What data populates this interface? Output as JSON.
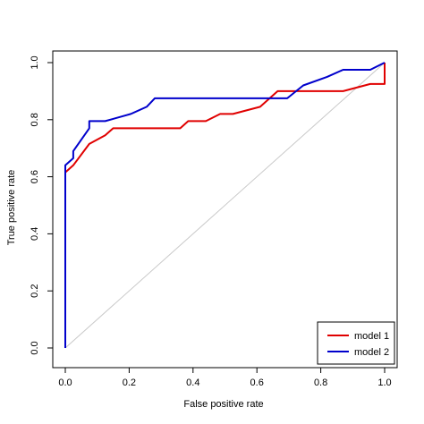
{
  "chart_data": {
    "type": "line",
    "title": "",
    "xlabel": "False positive rate",
    "ylabel": "True positive rate",
    "xlim": [
      0,
      1
    ],
    "ylim": [
      0,
      1
    ],
    "xticks": [
      "0.0",
      "0.2",
      "0.4",
      "0.6",
      "0.8",
      "1.0"
    ],
    "yticks": [
      "0.0",
      "0.2",
      "0.4",
      "0.6",
      "0.8",
      "1.0"
    ],
    "grid": false,
    "legend_position": "bottom-right",
    "reference_line": {
      "from": [
        0,
        0
      ],
      "to": [
        1,
        1
      ],
      "color": "#c8c8c8"
    },
    "series": [
      {
        "name": "model 1",
        "color": "#e00000",
        "points": [
          [
            0.0,
            0.0
          ],
          [
            0.0,
            0.615
          ],
          [
            0.025,
            0.64
          ],
          [
            0.075,
            0.715
          ],
          [
            0.125,
            0.745
          ],
          [
            0.15,
            0.77
          ],
          [
            0.36,
            0.77
          ],
          [
            0.385,
            0.795
          ],
          [
            0.44,
            0.795
          ],
          [
            0.485,
            0.82
          ],
          [
            0.525,
            0.82
          ],
          [
            0.61,
            0.845
          ],
          [
            0.665,
            0.9
          ],
          [
            0.87,
            0.9
          ],
          [
            0.955,
            0.925
          ],
          [
            1.0,
            0.925
          ],
          [
            1.0,
            1.0
          ]
        ]
      },
      {
        "name": "model 2",
        "color": "#0000cc",
        "points": [
          [
            0.0,
            0.0
          ],
          [
            0.0,
            0.64
          ],
          [
            0.025,
            0.665
          ],
          [
            0.025,
            0.69
          ],
          [
            0.075,
            0.77
          ],
          [
            0.075,
            0.795
          ],
          [
            0.125,
            0.795
          ],
          [
            0.205,
            0.82
          ],
          [
            0.255,
            0.845
          ],
          [
            0.28,
            0.875
          ],
          [
            0.695,
            0.875
          ],
          [
            0.745,
            0.92
          ],
          [
            0.82,
            0.95
          ],
          [
            0.87,
            0.975
          ],
          [
            0.955,
            0.975
          ],
          [
            1.0,
            1.0
          ]
        ]
      }
    ]
  }
}
